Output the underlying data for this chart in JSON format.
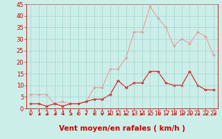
{
  "x": [
    0,
    1,
    2,
    3,
    4,
    5,
    6,
    7,
    8,
    9,
    10,
    11,
    12,
    13,
    14,
    15,
    16,
    17,
    18,
    19,
    20,
    21,
    22,
    23
  ],
  "wind_avg": [
    2,
    2,
    1,
    2,
    1,
    2,
    2,
    3,
    4,
    4,
    6,
    12,
    9,
    11,
    11,
    16,
    16,
    11,
    10,
    10,
    16,
    10,
    8,
    8
  ],
  "wind_gust": [
    6,
    6,
    6,
    2,
    3,
    2,
    2,
    3,
    9,
    9,
    17,
    17,
    22,
    33,
    33,
    44,
    39,
    35,
    27,
    30,
    28,
    33,
    31,
    23
  ],
  "xlabel": "Vent moyen/en rafales ( km/h )",
  "ylim": [
    0,
    45
  ],
  "yticks": [
    0,
    5,
    10,
    15,
    20,
    25,
    30,
    35,
    40,
    45
  ],
  "xlim": [
    -0.5,
    23.5
  ],
  "xticks": [
    0,
    1,
    2,
    3,
    4,
    5,
    6,
    7,
    8,
    9,
    10,
    11,
    12,
    13,
    14,
    15,
    16,
    17,
    18,
    19,
    20,
    21,
    22,
    23
  ],
  "avg_color": "#dd1111",
  "gust_color": "#ee9999",
  "background_color": "#cceee8",
  "grid_color": "#99cccc",
  "marker": "D",
  "marker_size": 2.0,
  "line_width": 0.8,
  "xlabel_fontsize": 7.5,
  "tick_fontsize": 6,
  "xlabel_color": "#cc0000",
  "tick_color": "#cc0000",
  "arrow_color": "#cc0000"
}
